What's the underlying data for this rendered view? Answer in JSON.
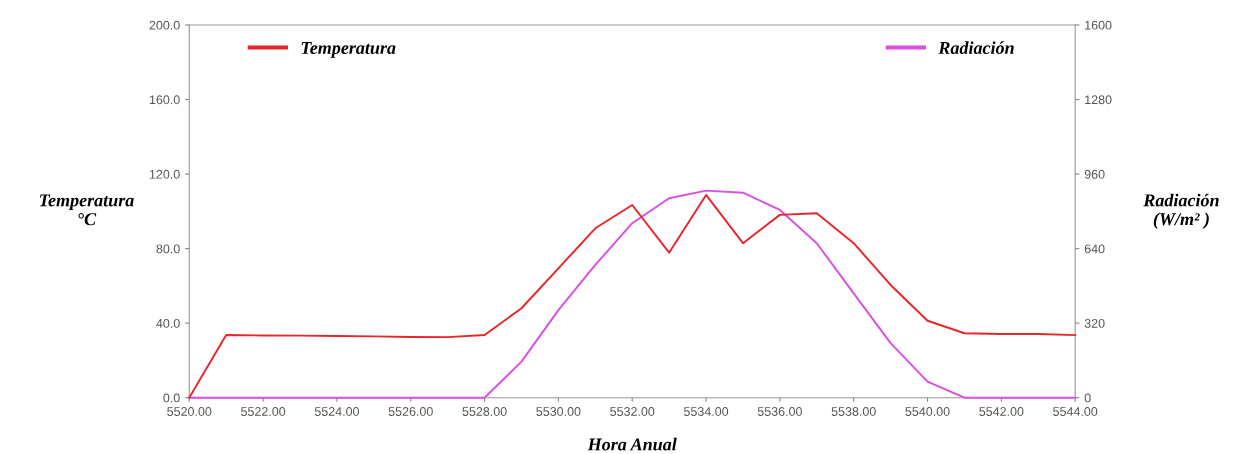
{
  "chart_data": {
    "type": "line",
    "xlabel": "Hora Anual",
    "ylabel": "Temperatura\n°C",
    "y2label": "Radiación\n(W/m² )",
    "x": [
      5520,
      5521,
      5522,
      5523,
      5524,
      5525,
      5526,
      5527,
      5528,
      5529,
      5530,
      5531,
      5532,
      5533,
      5534,
      5535,
      5536,
      5537,
      5538,
      5539,
      5540,
      5541,
      5542,
      5543,
      5544
    ],
    "series": [
      {
        "name": "Temperatura",
        "color": "#e8262a",
        "values": [
          0,
          33.6,
          33.4,
          33.3,
          33.1,
          32.9,
          32.6,
          32.5,
          33.6,
          48,
          69.4,
          90.9,
          103.4,
          77.8,
          108.8,
          82.9,
          98.1,
          99,
          82.9,
          60.5,
          41.3,
          34.6,
          34.2,
          34.2,
          33.6
        ]
      },
      {
        "name": "Radiación",
        "color": "#d94fe0",
        "axis": "y2",
        "values": [
          0,
          0,
          0,
          0,
          0,
          0,
          0,
          0,
          0,
          155,
          376,
          570,
          749,
          856,
          889,
          880,
          806,
          663,
          448,
          234,
          69,
          0,
          0,
          0,
          0
        ]
      }
    ],
    "xlim": [
      5520,
      5544
    ],
    "xticks": [
      {
        "value": 5520,
        "label": "5520.00"
      },
      {
        "value": 5522,
        "label": "5522.00"
      },
      {
        "value": 5524,
        "label": "5524.00"
      },
      {
        "value": 5526,
        "label": "5526.00"
      },
      {
        "value": 5528,
        "label": "5528.00"
      },
      {
        "value": 5530,
        "label": "5530.00"
      },
      {
        "value": 5532,
        "label": "5532.00"
      },
      {
        "value": 5534,
        "label": "5534.00"
      },
      {
        "value": 5536,
        "label": "5536.00"
      },
      {
        "value": 5538,
        "label": "5538.00"
      },
      {
        "value": 5540,
        "label": "5540.00"
      },
      {
        "value": 5542,
        "label": "5542.00"
      },
      {
        "value": 5544,
        "label": "5544.00"
      }
    ],
    "ylim": [
      0,
      200
    ],
    "yticks": [
      {
        "value": 0,
        "label": "0.0"
      },
      {
        "value": 40,
        "label": "40.0"
      },
      {
        "value": 80,
        "label": "80.0"
      },
      {
        "value": 120,
        "label": "120.0"
      },
      {
        "value": 160,
        "label": "160.0"
      },
      {
        "value": 200,
        "label": "200.0"
      }
    ],
    "y2lim": [
      0,
      1600
    ],
    "y2ticks": [
      0,
      320,
      640,
      960,
      1280,
      1600
    ],
    "grid": false,
    "legend": "top",
    "marker": "none",
    "line_style": "solid"
  }
}
